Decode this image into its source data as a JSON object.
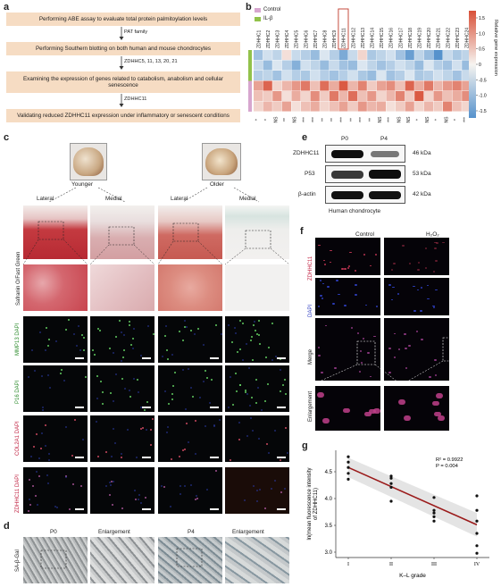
{
  "panel_letters": {
    "a": "a",
    "b": "b",
    "c": "c",
    "d": "d",
    "e": "e",
    "f": "f",
    "g": "g"
  },
  "panel_a": {
    "steps": [
      "Performing ABE assay to evaluate total protein palmitoylation levels",
      "Performing Southern blotting on both human and mouse chondrocytes",
      "Examining the expression of genes related to catabolism, anabolism and cellular senescence",
      "Validating reduced ZDHHC11 expression under inflammatory or senescent conditions"
    ],
    "arrow_labels": [
      "PAT family",
      "ZDHHC5, 11, 13, 20, 21",
      "ZDHHC11"
    ]
  },
  "panel_b": {
    "legend": [
      {
        "label": "Control",
        "color": "#d7a6cf"
      },
      {
        "label": "IL-β",
        "color": "#92c24b"
      }
    ],
    "genes": [
      "ZDHHC1",
      "ZDHHC2",
      "ZDHHC3",
      "ZDHHC4",
      "ZDHHC5",
      "ZDHHC6",
      "ZDHHC7",
      "ZDHHC8",
      "ZDHHC9",
      "ZDHHC11",
      "ZDHHC12",
      "ZDHHC13",
      "ZDHHC14",
      "ZDHHC15",
      "ZDHHC16",
      "ZDHHC17",
      "ZDHHC18",
      "ZDHHC19",
      "ZDHHC20",
      "ZDHHC21",
      "ZDHHC22",
      "ZDHHC23",
      "ZDHHC24"
    ],
    "significance": [
      "*",
      "*",
      "NS",
      "**",
      "NS",
      "***",
      "***",
      "**",
      "**",
      "***",
      "**",
      "***",
      "**",
      "NS",
      "***",
      "NS",
      "NS",
      "*",
      "NS",
      "*",
      "NS",
      "*",
      "***"
    ],
    "colorbar_label": "Relative gene expression",
    "colorbar_ticks": [
      "1.5",
      "1.0",
      "0.5",
      "0",
      "-0.5",
      "-1.0",
      "-1.5"
    ]
  },
  "panel_c": {
    "group_labels": [
      "Younger",
      "Older"
    ],
    "column_labels": [
      "Lateral",
      "Medial",
      "Lateral",
      "Medial"
    ],
    "row_labels": [
      "Safranin O/Fast Green",
      "MMP13 DAPI",
      "P16 DAPI",
      "COL2A1 DAPI",
      "ZDHHC11 DAPI"
    ]
  },
  "panel_d": {
    "row_label": "SA-β-Gal",
    "column_labels": [
      "P0",
      "Enlargement",
      "P4",
      "Enlargement"
    ]
  },
  "panel_e": {
    "column_labels": [
      "P0",
      "P4"
    ],
    "rows": [
      {
        "protein": "ZDHHC11",
        "size": "46 kDa"
      },
      {
        "protein": "P53",
        "size": "53 kDa"
      },
      {
        "protein": "β-actin",
        "size": "42 kDa"
      }
    ],
    "caption": "Human chondrocyte"
  },
  "panel_f": {
    "column_labels": [
      "Control",
      "H₂O₂"
    ],
    "row_labels": [
      "ZDHHC11",
      "DAPI",
      "Merge",
      "Enlargement"
    ]
  },
  "chart_data": {
    "type": "scatter",
    "title": "",
    "xlabel": "K–L grade",
    "ylabel": "ln(mean fluorescence intensity of ZDHHC11)",
    "categories": [
      "I",
      "II",
      "III",
      "IV"
    ],
    "ylim": [
      2.9,
      4.9
    ],
    "yticks": [
      "3.0",
      "3.5",
      "4.0",
      "4.5"
    ],
    "points": [
      {
        "x": "I",
        "y": 4.78
      },
      {
        "x": "I",
        "y": 4.68
      },
      {
        "x": "I",
        "y": 4.58
      },
      {
        "x": "I",
        "y": 4.47
      },
      {
        "x": "I",
        "y": 4.36
      },
      {
        "x": "II",
        "y": 4.42
      },
      {
        "x": "II",
        "y": 4.38
      },
      {
        "x": "II",
        "y": 4.28
      },
      {
        "x": "II",
        "y": 4.21
      },
      {
        "x": "II",
        "y": 3.95
      },
      {
        "x": "III",
        "y": 4.02
      },
      {
        "x": "III",
        "y": 3.78
      },
      {
        "x": "III",
        "y": 3.73
      },
      {
        "x": "III",
        "y": 3.66
      },
      {
        "x": "III",
        "y": 3.58
      },
      {
        "x": "IV",
        "y": 4.05
      },
      {
        "x": "IV",
        "y": 3.78
      },
      {
        "x": "IV",
        "y": 3.58
      },
      {
        "x": "IV",
        "y": 3.35
      },
      {
        "x": "IV",
        "y": 3.12
      },
      {
        "x": "IV",
        "y": 2.98
      }
    ],
    "fit": {
      "start": 4.58,
      "end": 3.51
    },
    "annotation": [
      "R² = 0.9922",
      "P = 0.004"
    ],
    "line_color": "#9b1b1b"
  }
}
